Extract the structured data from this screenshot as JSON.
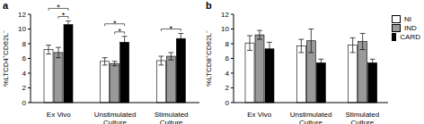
{
  "chart_data": [
    {
      "type": "bar",
      "title": "a",
      "y_label": "%LTCD4⁺CD62L⁻",
      "categories": [
        "Ex Vivo",
        "Unstimulated Culture",
        "Stimulated Culture"
      ],
      "series": [
        {
          "name": "NI",
          "color": "#ffffff",
          "values": [
            7.2,
            5.6,
            5.7
          ],
          "errors": [
            0.6,
            0.5,
            0.6
          ]
        },
        {
          "name": "IND",
          "color": "#999999",
          "values": [
            6.8,
            5.3,
            6.3
          ],
          "errors": [
            0.7,
            0.3,
            0.5
          ]
        },
        {
          "name": "CARD",
          "color": "#000000",
          "values": [
            10.6,
            8.2,
            8.7
          ],
          "errors": [
            0.5,
            0.8,
            0.7
          ]
        }
      ],
      "ylim": [
        0,
        12
      ],
      "yticks": [
        0,
        2,
        4,
        6,
        8,
        10,
        12
      ],
      "grid": false,
      "annotations": [
        {
          "category": "Ex Vivo",
          "from": "NI",
          "to": "CARD",
          "label": "*"
        },
        {
          "category": "Ex Vivo",
          "from": "IND",
          "to": "CARD",
          "label": "*"
        },
        {
          "category": "Unstimulated Culture",
          "from": "NI",
          "to": "CARD",
          "label": "*"
        },
        {
          "category": "Unstimulated Culture",
          "from": "IND",
          "to": "CARD",
          "label": "*"
        },
        {
          "category": "Stimulated Culture",
          "from": "NI",
          "to": "CARD",
          "label": "*"
        }
      ]
    },
    {
      "type": "bar",
      "title": "b",
      "y_label": "%LTCD8⁺CD62L⁻",
      "categories": [
        "Ex Vivo",
        "Unstimulated Culture",
        "Stimulated Culture"
      ],
      "series": [
        {
          "name": "NI",
          "color": "#ffffff",
          "values": [
            8.1,
            7.7,
            7.8
          ],
          "errors": [
            1.0,
            0.9,
            1.0
          ]
        },
        {
          "name": "IND",
          "color": "#999999",
          "values": [
            9.2,
            8.4,
            8.3
          ],
          "errors": [
            0.6,
            1.6,
            1.1
          ]
        },
        {
          "name": "CARD",
          "color": "#000000",
          "values": [
            7.3,
            5.4,
            5.4
          ],
          "errors": [
            0.9,
            0.5,
            0.5
          ]
        }
      ],
      "ylim": [
        0,
        12
      ],
      "yticks": [
        0,
        2,
        4,
        6,
        8,
        10,
        12
      ],
      "grid": false,
      "legend": "upper right"
    }
  ]
}
